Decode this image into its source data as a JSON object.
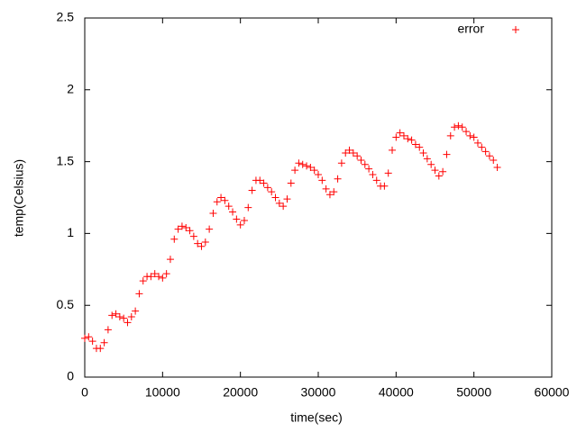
{
  "chart_data": {
    "type": "scatter",
    "xlabel": "time(sec)",
    "ylabel": "temp(Celsius)",
    "xlim": [
      0,
      60000
    ],
    "ylim": [
      0,
      2.5
    ],
    "xticks": [
      0,
      10000,
      20000,
      30000,
      40000,
      50000,
      60000
    ],
    "yticks": [
      0,
      0.5,
      1,
      1.5,
      2,
      2.5
    ],
    "legend": "top-right",
    "series": [
      {
        "name": "error",
        "color": "#ff0000",
        "x": [
          0,
          500,
          1000,
          1500,
          2000,
          2500,
          3000,
          3500,
          4000,
          4500,
          5000,
          5500,
          6000,
          6500,
          7000,
          7500,
          8000,
          8500,
          9000,
          9500,
          10000,
          10500,
          11000,
          11500,
          12000,
          12500,
          13000,
          13500,
          14000,
          14500,
          15000,
          15500,
          16000,
          16500,
          17000,
          17500,
          18000,
          18500,
          19000,
          19500,
          20000,
          20500,
          21000,
          21500,
          22000,
          22500,
          23000,
          23500,
          24000,
          24500,
          25000,
          25500,
          26000,
          26500,
          27000,
          27500,
          28000,
          28500,
          29000,
          29500,
          30000,
          30500,
          31000,
          31500,
          32000,
          32500,
          33000,
          33500,
          34000,
          34500,
          35000,
          35500,
          36000,
          36500,
          37000,
          37500,
          38000,
          38500,
          39000,
          39500,
          40000,
          40500,
          41000,
          41500,
          42000,
          42500,
          43000,
          43500,
          44000,
          44500,
          45000,
          45500,
          46000,
          46500,
          47000,
          47500,
          48000,
          48500,
          49000,
          49500,
          50000,
          50500,
          51000,
          51500,
          52000,
          52500,
          53000
        ],
        "values": [
          0.27,
          0.28,
          0.25,
          0.2,
          0.2,
          0.24,
          0.33,
          0.43,
          0.44,
          0.42,
          0.41,
          0.38,
          0.42,
          0.46,
          0.58,
          0.67,
          0.7,
          0.7,
          0.72,
          0.7,
          0.69,
          0.72,
          0.82,
          0.96,
          1.03,
          1.05,
          1.04,
          1.02,
          0.98,
          0.93,
          0.91,
          0.94,
          1.03,
          1.14,
          1.22,
          1.25,
          1.23,
          1.19,
          1.15,
          1.1,
          1.06,
          1.09,
          1.18,
          1.3,
          1.37,
          1.37,
          1.35,
          1.32,
          1.29,
          1.25,
          1.21,
          1.19,
          1.24,
          1.35,
          1.44,
          1.49,
          1.48,
          1.47,
          1.46,
          1.44,
          1.41,
          1.37,
          1.31,
          1.27,
          1.29,
          1.38,
          1.49,
          1.56,
          1.58,
          1.56,
          1.54,
          1.51,
          1.48,
          1.45,
          1.41,
          1.37,
          1.33,
          1.33,
          1.42,
          1.58,
          1.67,
          1.7,
          1.68,
          1.66,
          1.65,
          1.62,
          1.6,
          1.56,
          1.52,
          1.48,
          1.44,
          1.4,
          1.43,
          1.55,
          1.68,
          1.74,
          1.75,
          1.74,
          1.71,
          1.68,
          1.67,
          1.63,
          1.6,
          1.57,
          1.54,
          1.51,
          1.46
        ]
      }
    ]
  }
}
